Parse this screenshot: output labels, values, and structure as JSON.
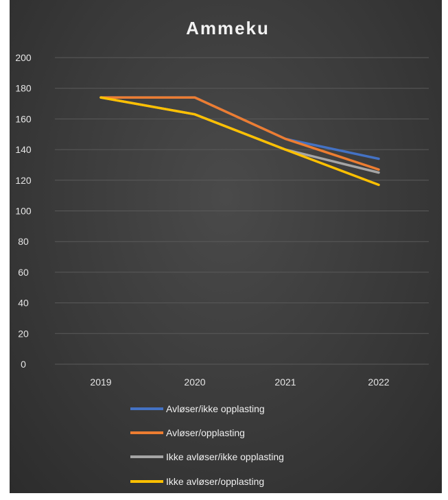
{
  "chart_data": {
    "type": "line",
    "title": "Ammeku",
    "categories": [
      "2019",
      "2020",
      "2021",
      "2022"
    ],
    "ylim": [
      0,
      200
    ],
    "yticks": [
      0,
      20,
      40,
      60,
      80,
      100,
      120,
      140,
      160,
      180,
      200
    ],
    "grid": true,
    "legend_position": "bottom",
    "series": [
      {
        "name": "Avløser/ikke opplasting",
        "color": "#4472C4",
        "values": [
          174,
          174,
          147,
          134
        ]
      },
      {
        "name": "Avløser/opplasting",
        "color": "#ED7D31",
        "values": [
          174,
          174,
          147,
          127
        ]
      },
      {
        "name": "Ikke avløser/ikke opplasting",
        "color": "#A5A5A5",
        "values": [
          174,
          163,
          140,
          125
        ]
      },
      {
        "name": "Ikke avløser/opplasting",
        "color": "#FFC000",
        "values": [
          174,
          163,
          140,
          117
        ]
      }
    ]
  }
}
